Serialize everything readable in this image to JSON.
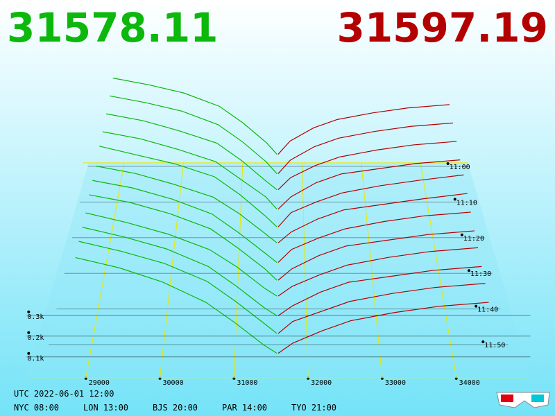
{
  "chart_data": {
    "type": "depth3d",
    "bid_price": "31578.11",
    "ask_price": "31597.19",
    "bid_color": "#0bb80b",
    "ask_color": "#b30000",
    "bid_prices": [
      31578,
      31400,
      31000,
      30600,
      30000,
      29400,
      28800
    ],
    "ask_prices": [
      31597,
      31800,
      32200,
      32600,
      33200,
      33800,
      34500
    ],
    "snapshots": [
      {
        "t": 658,
        "bids": [
          0.03,
          0.1,
          0.22,
          0.32,
          0.4,
          0.45,
          0.49
        ],
        "asks": [
          0.03,
          0.11,
          0.19,
          0.24,
          0.28,
          0.31,
          0.33
        ]
      },
      {
        "t": 663,
        "bids": [
          0.02,
          0.09,
          0.21,
          0.31,
          0.39,
          0.44,
          0.48
        ],
        "asks": [
          0.02,
          0.1,
          0.18,
          0.23,
          0.27,
          0.3,
          0.32
        ]
      },
      {
        "t": 668,
        "bids": [
          0.03,
          0.08,
          0.2,
          0.3,
          0.37,
          0.43,
          0.47
        ],
        "asks": [
          0.03,
          0.1,
          0.17,
          0.22,
          0.26,
          0.29,
          0.31
        ]
      },
      {
        "t": 673,
        "bids": [
          0.02,
          0.09,
          0.19,
          0.29,
          0.36,
          0.42,
          0.46
        ],
        "asks": [
          0.02,
          0.09,
          0.17,
          0.22,
          0.25,
          0.28,
          0.3
        ]
      },
      {
        "t": 678,
        "bids": [
          0.02,
          0.08,
          0.2,
          0.3,
          0.37,
          0.42,
          0.47
        ],
        "asks": [
          0.02,
          0.1,
          0.16,
          0.21,
          0.25,
          0.28,
          0.31
        ]
      },
      {
        "t": 683,
        "bids": [
          0.03,
          0.08,
          0.19,
          0.28,
          0.35,
          0.41,
          0.45
        ],
        "asks": [
          0.03,
          0.09,
          0.16,
          0.21,
          0.24,
          0.27,
          0.3
        ]
      },
      {
        "t": 688,
        "bids": [
          0.02,
          0.07,
          0.18,
          0.28,
          0.36,
          0.42,
          0.46
        ],
        "asks": [
          0.02,
          0.09,
          0.15,
          0.2,
          0.24,
          0.27,
          0.29
        ]
      },
      {
        "t": 693,
        "bids": [
          0.02,
          0.08,
          0.19,
          0.29,
          0.37,
          0.43,
          0.47
        ],
        "asks": [
          0.02,
          0.08,
          0.15,
          0.2,
          0.23,
          0.26,
          0.28
        ]
      },
      {
        "t": 698,
        "bids": [
          0.03,
          0.07,
          0.18,
          0.27,
          0.35,
          0.41,
          0.46
        ],
        "asks": [
          0.03,
          0.08,
          0.14,
          0.19,
          0.23,
          0.26,
          0.28
        ]
      },
      {
        "t": 703,
        "bids": [
          0.02,
          0.06,
          0.17,
          0.27,
          0.36,
          0.42,
          0.47
        ],
        "asks": [
          0.02,
          0.07,
          0.14,
          0.19,
          0.22,
          0.25,
          0.27
        ]
      },
      {
        "t": 708,
        "bids": [
          0.02,
          0.07,
          0.18,
          0.28,
          0.37,
          0.43,
          0.48
        ],
        "asks": [
          0.02,
          0.08,
          0.13,
          0.18,
          0.22,
          0.25,
          0.27
        ]
      },
      {
        "t": 713,
        "bids": [
          0.01,
          0.05,
          0.16,
          0.26,
          0.36,
          0.43,
          0.48
        ],
        "asks": [
          0.01,
          0.06,
          0.12,
          0.17,
          0.21,
          0.24,
          0.26
        ]
      }
    ],
    "xticks": [
      29000,
      30000,
      31000,
      32000,
      33000,
      34000
    ],
    "time_ticks": [
      {
        "value": 660,
        "label": "11:00"
      },
      {
        "value": 670,
        "label": "11:10"
      },
      {
        "value": 680,
        "label": "11:20"
      },
      {
        "value": 690,
        "label": "11:30"
      },
      {
        "value": 700,
        "label": "11:40"
      },
      {
        "value": 710,
        "label": "11:50"
      }
    ],
    "vticks": [
      {
        "value": 0.1,
        "label": "0.1k"
      },
      {
        "value": 0.2,
        "label": "0.2k"
      },
      {
        "value": 0.3,
        "label": "0.3k"
      }
    ]
  },
  "footer": {
    "utc": "UTC 2022-06-01 12:00",
    "zones": [
      "NYC 08:00",
      "LON 13:00",
      "BJS 20:00",
      "PAR 14:00",
      "TYO 21:00"
    ]
  }
}
